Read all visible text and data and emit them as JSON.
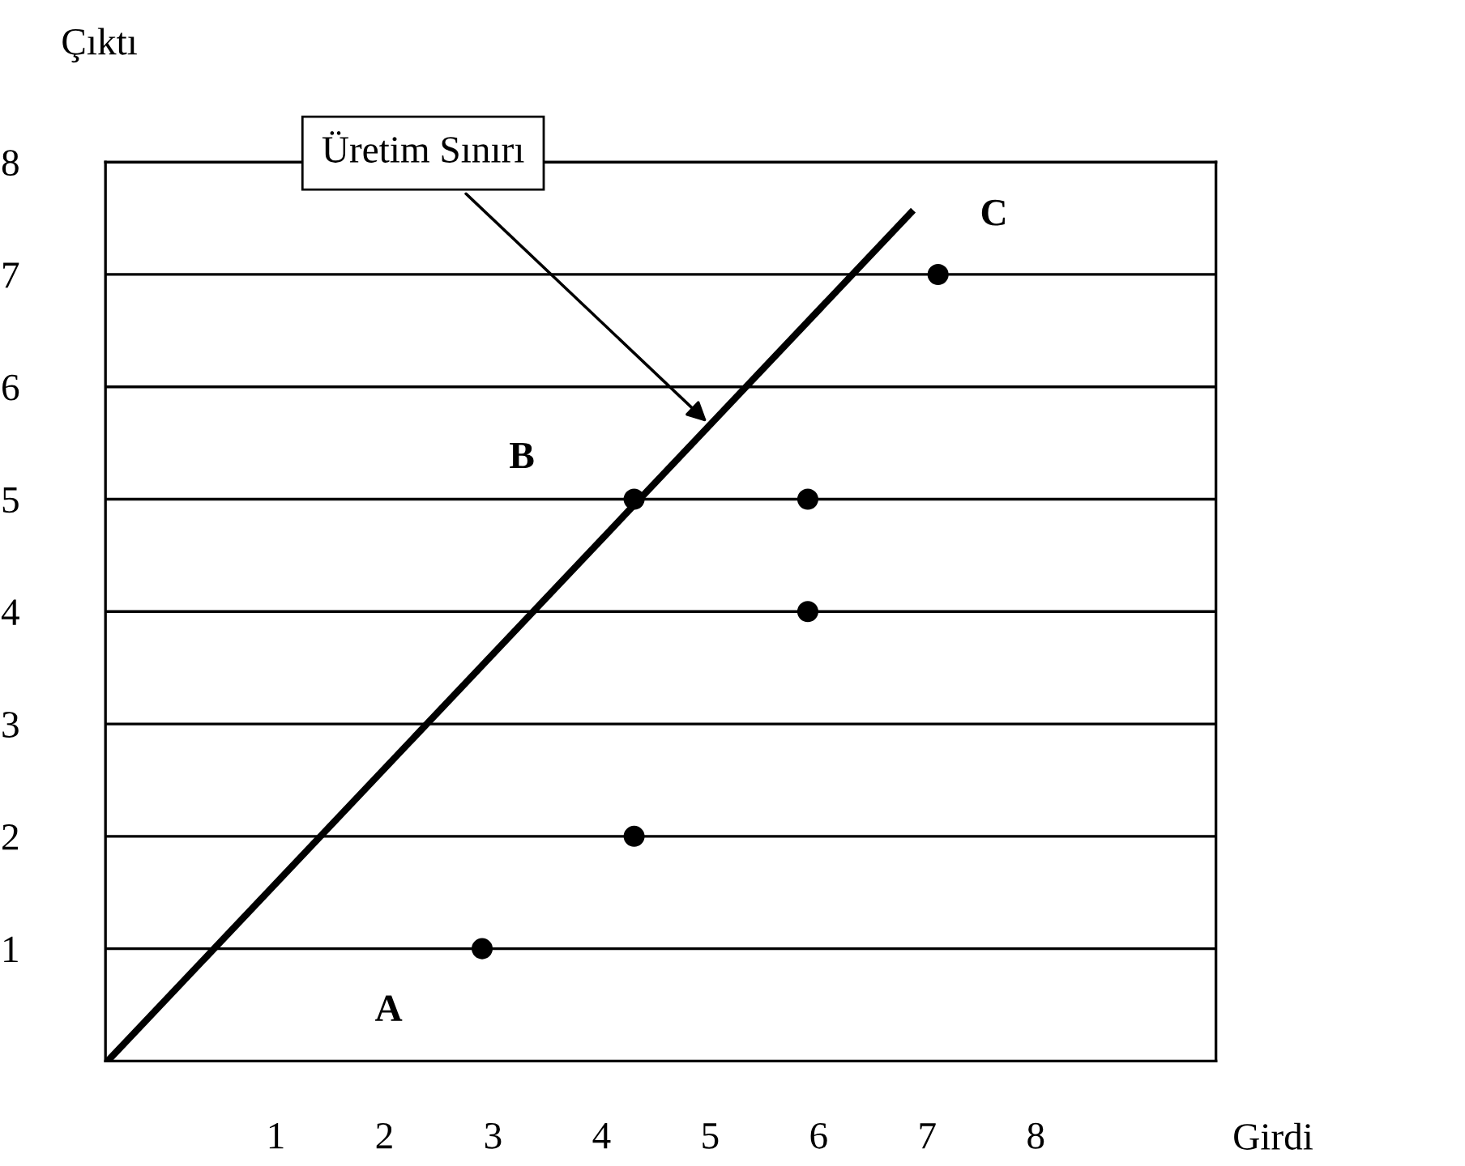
{
  "chart_data": {
    "type": "scatter",
    "xlabel": "Girdi",
    "ylabel": "Çıktı",
    "xlim": [
      -0.57,
      9.66
    ],
    "ylim": [
      0,
      8
    ],
    "xticks": [
      1,
      2,
      3,
      4,
      5,
      6,
      7,
      8
    ],
    "yticks": [
      1,
      2,
      3,
      4,
      5,
      6,
      7,
      8
    ],
    "grid": "y",
    "marker": "circle",
    "series": [
      {
        "color": "#000000",
        "x": [
          2.9,
          4.3,
          4.3,
          5.9,
          5.9,
          7.1
        ],
        "values": [
          1,
          2,
          5,
          5,
          4,
          7
        ]
      },
      {
        "type": "line",
        "color": "#000000",
        "marker": "none",
        "line_style": "solid",
        "x": [
          -0.55,
          6.85
        ],
        "values": [
          0,
          7.55
        ]
      }
    ],
    "annotations": [
      {
        "text": "Üretim Sınırı",
        "x": 5.0,
        "y": 5.66
      },
      "A",
      "B",
      "C"
    ]
  }
}
